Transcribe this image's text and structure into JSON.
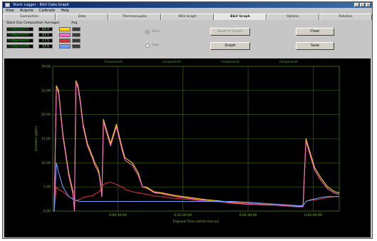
{
  "window": {
    "title": "Stack Logger - B&V Data Graph",
    "buttons": [
      "_",
      "□",
      "×"
    ]
  },
  "menu": [
    "View",
    "Acquire",
    "Calibrate",
    "Help"
  ],
  "tabs": [
    {
      "label": "Connection",
      "active": false
    },
    {
      "label": "Data",
      "active": false
    },
    {
      "label": "Thermocouples",
      "active": false
    },
    {
      "label": "NOx Graph",
      "active": false
    },
    {
      "label": "B&V Graph",
      "active": true
    },
    {
      "label": "Options",
      "active": false
    },
    {
      "label": "Pollution",
      "active": false
    }
  ],
  "panel": {
    "title": "Stack Gas Composition Averages",
    "checkbox_label": "Avg",
    "channels": [
      {
        "name": "Component1",
        "value": "60.4",
        "swatch": "#ffd400"
      },
      {
        "name": "Component2",
        "value": "41.1",
        "swatch": "#ff66cc"
      },
      {
        "name": "Component3",
        "value": "17.5",
        "swatch": "#cc3333"
      },
      {
        "name": "Component4",
        "value": "14.6",
        "swatch": "#6aa0ff"
      }
    ],
    "radios": [
      {
        "label": "Start",
        "checked": true
      },
      {
        "label": "Stop",
        "checked": false
      }
    ],
    "buttons": {
      "save_graph": "Save to Graph",
      "graph": "Graph",
      "clear": "Clear",
      "save": "Save"
    }
  },
  "chart_header": [
    "Component1",
    "Component2",
    "Component3",
    "Component4"
  ],
  "chart_data": {
    "type": "line",
    "ylabel": "Emission (ppm)",
    "xlabel": "Elapsed Time (dd:hh:mm:ss)",
    "ylim": [
      0,
      30
    ],
    "yticks": [
      "30.00",
      "25.00",
      "20.00",
      "15.00",
      "10.00",
      "5.00",
      "0.00"
    ],
    "xticks": [
      "0:00:30:00",
      "0:01:00:00",
      "0:01:30:00",
      "0:02:00:00"
    ],
    "grid": true,
    "x": [
      0,
      2,
      5,
      8,
      10,
      14,
      18,
      22,
      28,
      30,
      32,
      35,
      38,
      42,
      48,
      56,
      58,
      62,
      64,
      66,
      68,
      70,
      74,
      80,
      88,
      96,
      100,
      110,
      118,
      124,
      129,
      135,
      140,
      150,
      160,
      170,
      180,
      190,
      200,
      210,
      230,
      250,
      270,
      290,
      310,
      320,
      330,
      335,
      340,
      346,
      350,
      356,
      362,
      370,
      380,
      390,
      396
    ],
    "series": [
      {
        "color": "#ffd400",
        "values": [
          0,
          0,
          26,
          25,
          22,
          16,
          12,
          8,
          4,
          0,
          27,
          26,
          23,
          18,
          14,
          11,
          10,
          9,
          8,
          6,
          3,
          19,
          17,
          14,
          18,
          13,
          11,
          10,
          8,
          5,
          5,
          4.5,
          4,
          3.8,
          3.5,
          3.2,
          3.0,
          2.8,
          2.6,
          2.4,
          2.1,
          1.8,
          1.6,
          1.5,
          1.4,
          1.3,
          1.2,
          1.1,
          1.0,
          1.0,
          15,
          12,
          9,
          7,
          5,
          4,
          3.8
        ]
      },
      {
        "color": "#ff66cc",
        "values": [
          0,
          0,
          25.5,
          24.5,
          21.5,
          15.5,
          11.5,
          7.5,
          3.5,
          0,
          26.5,
          25.5,
          22.5,
          17.5,
          13.5,
          10.5,
          9.5,
          8.5,
          7.5,
          5.5,
          3,
          18.5,
          16.5,
          13.5,
          17.5,
          12.5,
          10.5,
          9.5,
          7.5,
          5,
          4.8,
          4.3,
          3.8,
          3.6,
          3.3,
          3.0,
          2.8,
          2.6,
          2.4,
          2.2,
          1.9,
          1.6,
          1.4,
          1.3,
          1.2,
          1.1,
          1.0,
          0.9,
          0.9,
          0.9,
          14.5,
          11.5,
          8.5,
          6.5,
          4.6,
          3.7,
          3.5
        ]
      },
      {
        "color": "#cc3333",
        "values": [
          0,
          0,
          5,
          4.5,
          4.3,
          4,
          3.5,
          3,
          2.5,
          2,
          2.2,
          2.3,
          2.5,
          2.8,
          3,
          3.2,
          3.5,
          3.8,
          4,
          4.5,
          5,
          5.5,
          5.8,
          6,
          5.5,
          5,
          4.5,
          4,
          3.8,
          3.6,
          3.5,
          3.3,
          3.1,
          3,
          2.8,
          2.6,
          2.5,
          2.4,
          2.2,
          2.1,
          1.9,
          1.7,
          1.6,
          1.5,
          1.4,
          1.3,
          1.2,
          1.2,
          1.1,
          1.1,
          2,
          2.2,
          2.3,
          2.5,
          2.8,
          3,
          3
        ]
      },
      {
        "color": "#6aa0ff",
        "values": [
          0,
          0,
          10,
          8,
          7,
          5,
          4,
          3,
          2.5,
          2.3,
          2.2,
          2.1,
          2.0,
          2.0,
          2.0,
          2.0,
          2.0,
          2.0,
          2.0,
          2.0,
          2.0,
          2.0,
          2.0,
          2.0,
          2.0,
          2.0,
          2.0,
          2.0,
          2.0,
          2.0,
          2.0,
          2.0,
          2.0,
          2.0,
          2.0,
          2.0,
          2.0,
          2.0,
          2.0,
          2.0,
          2.0,
          2.0,
          1.8,
          1.6,
          1.4,
          1.3,
          1.2,
          1.1,
          1.1,
          1.1,
          2.0,
          2.3,
          2.5,
          2.8,
          3.0,
          3.0,
          3.0
        ]
      }
    ]
  }
}
